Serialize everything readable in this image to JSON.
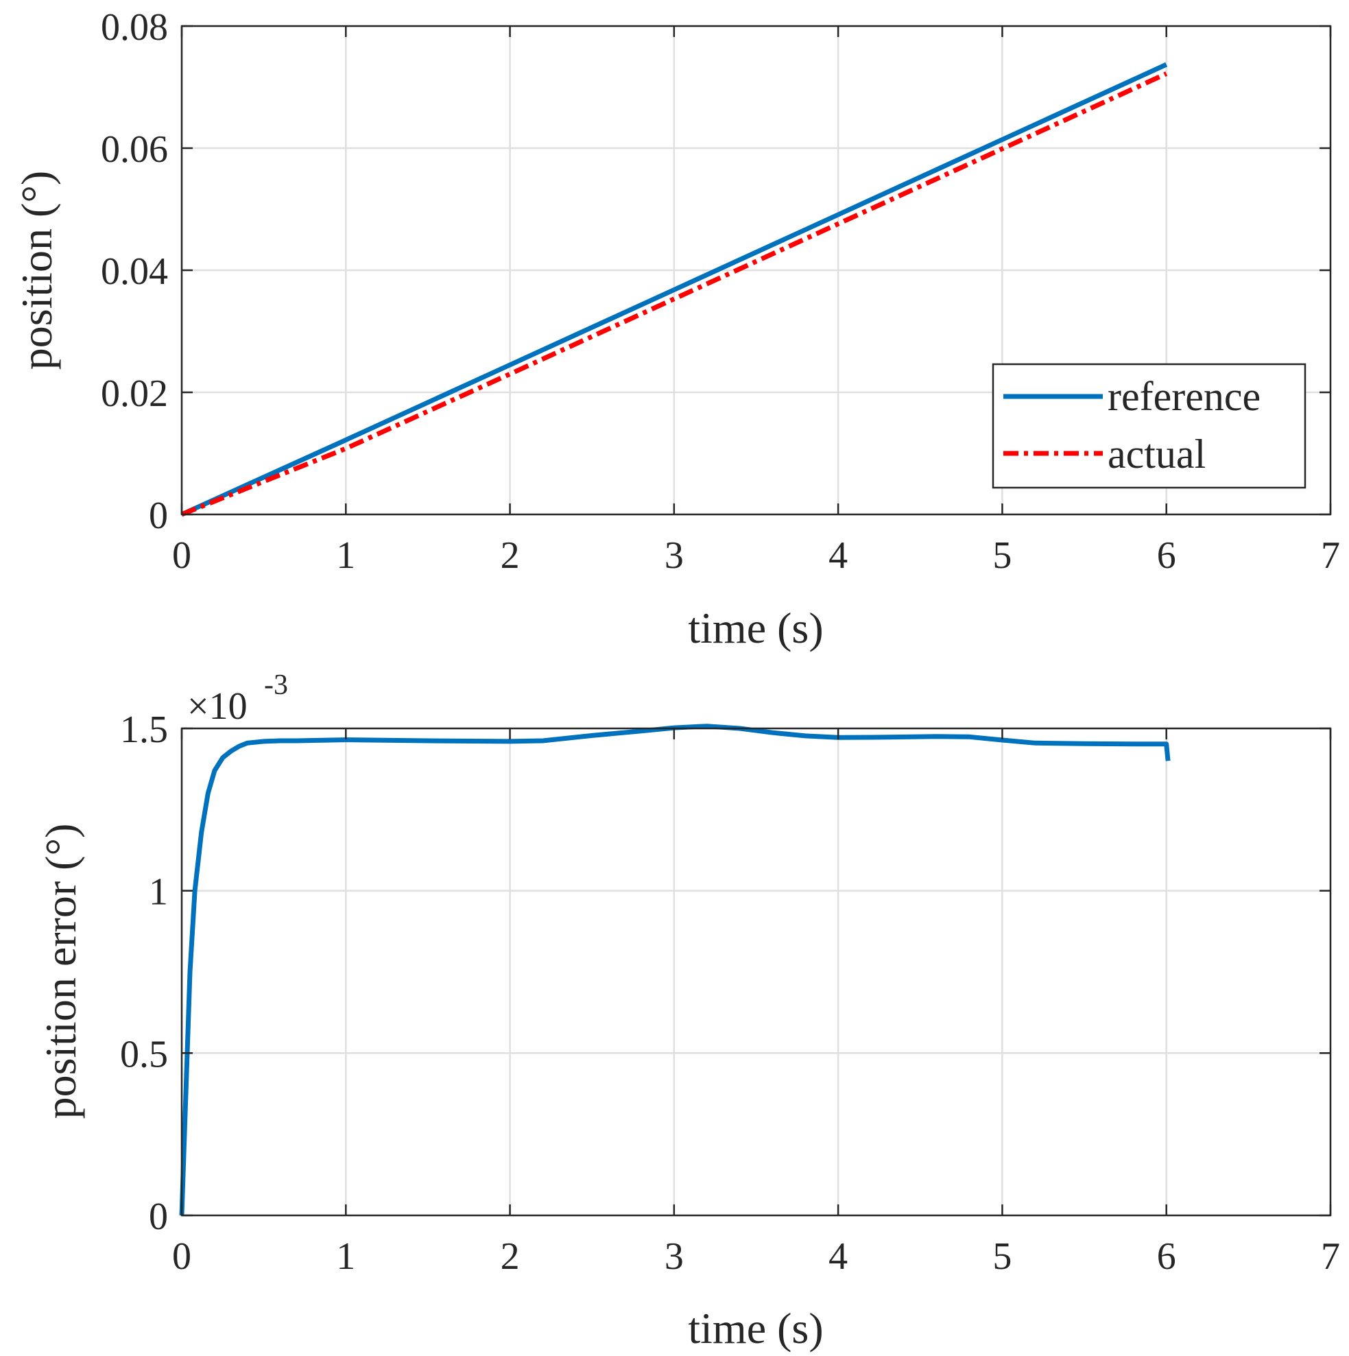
{
  "chart_data": [
    {
      "type": "line",
      "title": "",
      "xlabel": "time (s)",
      "ylabel": "position (°)",
      "xlim": [
        0,
        7
      ],
      "ylim": [
        0,
        0.08
      ],
      "x_ticks": [
        0,
        1,
        2,
        3,
        4,
        5,
        6,
        7
      ],
      "x_tick_labels": [
        "0",
        "1",
        "2",
        "3",
        "4",
        "5",
        "6",
        "7"
      ],
      "y_ticks": [
        0,
        0.02,
        0.04,
        0.06,
        0.08
      ],
      "y_tick_labels": [
        "0",
        "0.02",
        "0.04",
        "0.06",
        "0.08"
      ],
      "grid": true,
      "legend": "bottom-right",
      "series": [
        {
          "name": "reference",
          "color": "#0072bd",
          "style": "solid",
          "x": [
            0,
            1,
            2,
            3,
            4,
            5,
            6
          ],
          "y": [
            0,
            0.0122,
            0.0245,
            0.0368,
            0.0491,
            0.0614,
            0.0737
          ]
        },
        {
          "name": "actual",
          "color": "#ff0000",
          "style": "dashdot",
          "x": [
            0,
            1,
            2,
            3,
            4,
            5,
            6
          ],
          "y": [
            0,
            0.0108,
            0.023,
            0.0353,
            0.0476,
            0.0599,
            0.0722
          ]
        }
      ]
    },
    {
      "type": "line",
      "title": "",
      "xlabel": "time (s)",
      "ylabel": "position error (°)",
      "y_exponent_label": "×10",
      "y_exponent_power": "-3",
      "xlim": [
        0,
        7
      ],
      "ylim": [
        0,
        1.5
      ],
      "x_ticks": [
        0,
        1,
        2,
        3,
        4,
        5,
        6,
        7
      ],
      "x_tick_labels": [
        "0",
        "1",
        "2",
        "3",
        "4",
        "5",
        "6",
        "7"
      ],
      "y_ticks": [
        0,
        0.5,
        1,
        1.5
      ],
      "y_tick_labels": [
        "0",
        "0.5",
        "1",
        "1.5"
      ],
      "grid": true,
      "series": [
        {
          "name": "position error",
          "color": "#0072bd",
          "style": "solid",
          "x": [
            0,
            0.02,
            0.05,
            0.08,
            0.12,
            0.16,
            0.2,
            0.25,
            0.3,
            0.35,
            0.4,
            0.5,
            0.6,
            0.7,
            0.8,
            1.0,
            1.5,
            2.0,
            2.2,
            2.5,
            2.8,
            3.0,
            3.2,
            3.4,
            3.6,
            3.8,
            4.0,
            4.3,
            4.6,
            4.8,
            5.0,
            5.2,
            5.5,
            5.8,
            6.0,
            6.01
          ],
          "y": [
            0,
            0.3,
            0.75,
            1.0,
            1.18,
            1.3,
            1.37,
            1.41,
            1.43,
            1.445,
            1.455,
            1.46,
            1.462,
            1.462,
            1.463,
            1.465,
            1.462,
            1.46,
            1.462,
            1.478,
            1.492,
            1.502,
            1.507,
            1.5,
            1.487,
            1.477,
            1.472,
            1.473,
            1.475,
            1.474,
            1.464,
            1.455,
            1.453,
            1.452,
            1.452,
            1.4
          ]
        }
      ]
    }
  ]
}
